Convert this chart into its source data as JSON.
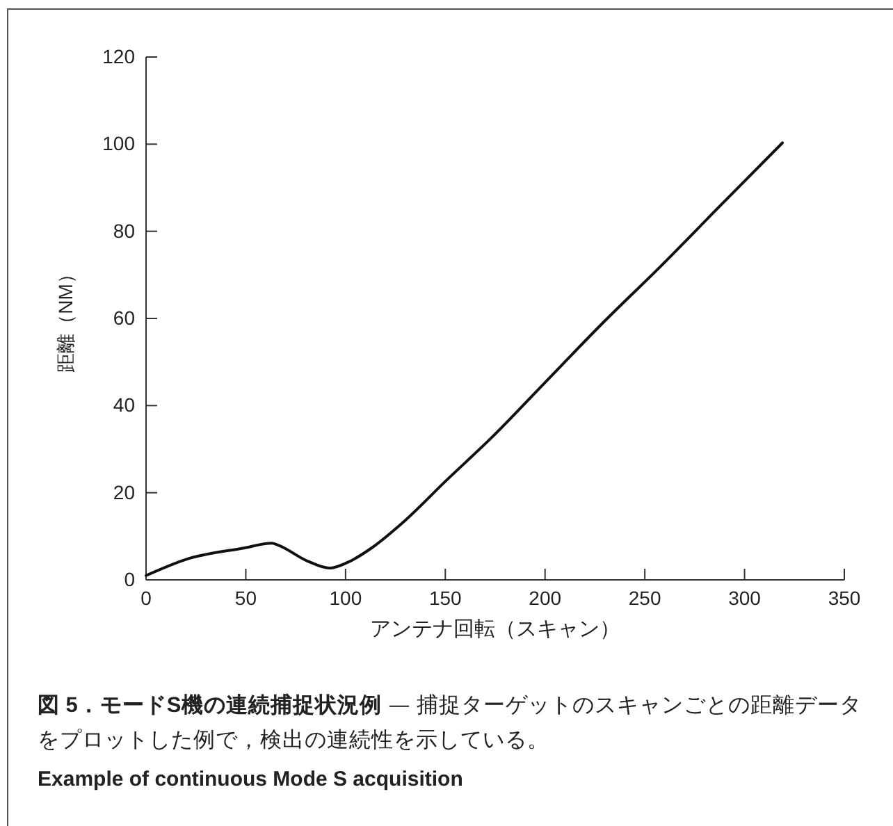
{
  "chart_data": {
    "type": "line",
    "title": "図 5．モードS機の連続捕捉状況例",
    "subtitle": "— 捕捉ターゲットのスキャンごとの距離データをプロットした例で，検出の連続性を示している。",
    "annotations": [
      "Example of continuous Mode S acquisition"
    ],
    "xlabel": "アンテナ回転（スキャン）",
    "ylabel": "距離（NM）",
    "x": [
      0,
      20,
      49,
      63,
      66,
      81,
      92,
      101,
      113,
      130,
      150,
      174,
      200,
      229,
      258,
      287,
      319
    ],
    "series": [
      {
        "color": "#111111",
        "values": [
          1,
          4.7,
          7.3,
          8.4,
          8.0,
          4.3,
          2.7,
          4,
          7.3,
          13.7,
          22.6,
          33,
          45.3,
          59,
          72,
          85.5,
          100.3
        ]
      }
    ],
    "xlim": [
      0,
      350
    ],
    "xticks": [
      0,
      50,
      100,
      150,
      200,
      250,
      300,
      350
    ],
    "ylim": [
      0,
      120
    ],
    "yticks": [
      0,
      20,
      40,
      60,
      80,
      100,
      120
    ],
    "grid": false,
    "marker": "none",
    "line_style": "solid"
  }
}
